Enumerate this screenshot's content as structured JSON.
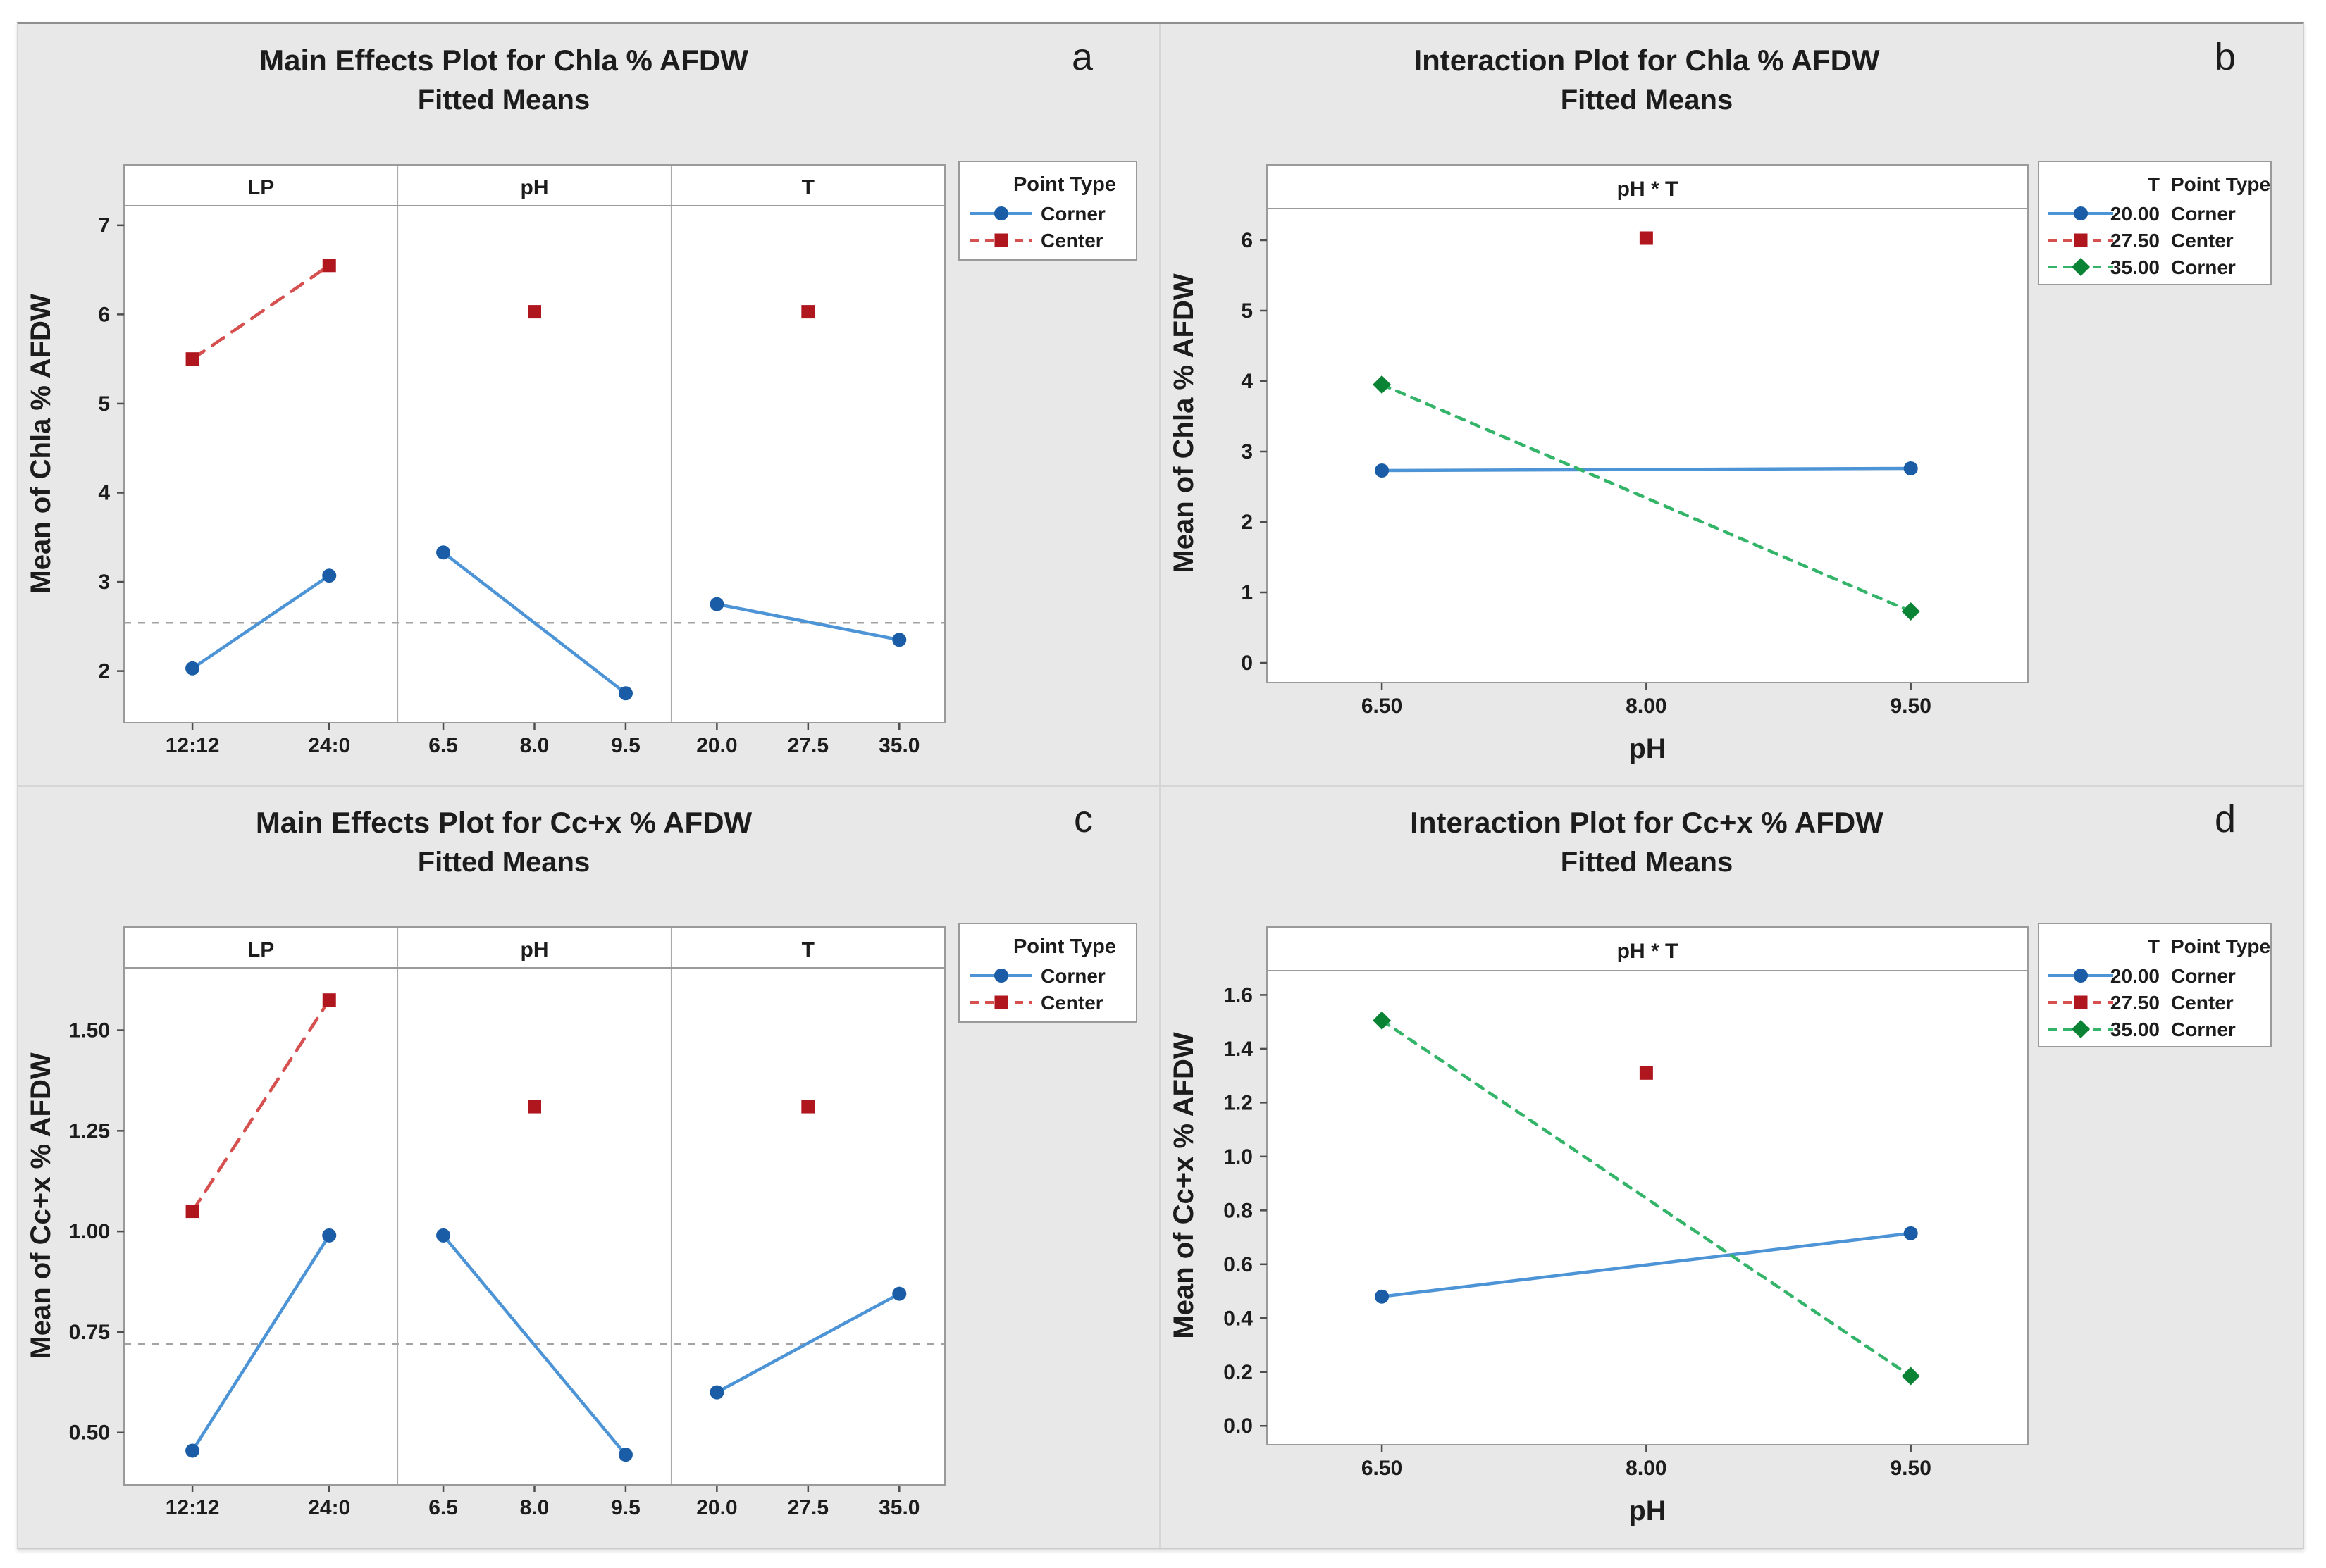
{
  "colors": {
    "background": "#E8E8E8",
    "panel_fill": "#FFFFFF",
    "frame_stroke": "#9A9A9A",
    "divider": "#ABABAB",
    "quad_divider": "#D6D6D6",
    "text": "#1C1C1C",
    "tick": "#4D4D4D",
    "ref_line": "#A3A3A3",
    "series_styles": {
      "corner_blue": {
        "line": "#4D94D6",
        "marker": "#1A5DA6",
        "dash": "",
        "shape": "circle"
      },
      "center_red": {
        "line": "#D5504E",
        "marker": "#AF161E",
        "dash": "20 14",
        "shape": "square"
      },
      "corner_green": {
        "line": "#33B469",
        "marker": "#0A8434",
        "dash": "12 11",
        "shape": "diamond"
      }
    }
  },
  "chart_data": [
    {
      "type": "line",
      "variant": "main_effects",
      "corner_label": "a",
      "title": "Main Effects Plot for Chla % AFDW",
      "subtitle": "Fitted Means",
      "ylabel": "Mean of Chla % AFDW",
      "ylim": [
        1.42,
        7.22
      ],
      "ytick_values": [
        7,
        6,
        5,
        4,
        3,
        2
      ],
      "ytick_labels": [
        "7",
        "6",
        "5",
        "4",
        "3",
        "2"
      ],
      "ref_line": 2.54,
      "groups": [
        {
          "name": "LP",
          "categories": [
            "12:12",
            "24:0"
          ],
          "series": [
            {
              "style": "center_red",
              "point_type": "Center",
              "idx": [
                0,
                1
              ],
              "values": [
                5.5,
                6.55
              ]
            },
            {
              "style": "corner_blue",
              "point_type": "Corner",
              "idx": [
                0,
                1
              ],
              "values": [
                2.03,
                3.07
              ]
            }
          ]
        },
        {
          "name": "pH",
          "categories": [
            "6.5",
            "8.0",
            "9.5"
          ],
          "series": [
            {
              "style": "center_red",
              "point_type": "Center",
              "idx": [
                1
              ],
              "values": [
                6.03
              ]
            },
            {
              "style": "corner_blue",
              "point_type": "Corner",
              "idx": [
                0,
                2
              ],
              "values": [
                3.33,
                1.75
              ]
            }
          ]
        },
        {
          "name": "T",
          "categories": [
            "20.0",
            "27.5",
            "35.0"
          ],
          "series": [
            {
              "style": "center_red",
              "point_type": "Center",
              "idx": [
                1
              ],
              "values": [
                6.03
              ]
            },
            {
              "style": "corner_blue",
              "point_type": "Corner",
              "idx": [
                0,
                2
              ],
              "values": [
                2.75,
                2.35
              ]
            }
          ]
        }
      ],
      "legend": {
        "title": "Point Type",
        "entries": [
          {
            "label": "Corner",
            "style": "corner_blue"
          },
          {
            "label": "Center",
            "style": "center_red"
          }
        ]
      }
    },
    {
      "type": "line",
      "variant": "interaction",
      "corner_label": "b",
      "title": "Interaction Plot for Chla % AFDW",
      "subtitle": "Fitted Means",
      "panel_header": "pH * T",
      "ylabel": "Mean of Chla % AFDW",
      "xlabel": "pH",
      "ylim": [
        -0.28,
        6.45
      ],
      "ytick_values": [
        6,
        5,
        4,
        3,
        2,
        1,
        0
      ],
      "ytick_labels": [
        "6",
        "5",
        "4",
        "3",
        "2",
        "1",
        "0"
      ],
      "xtick_values": [
        6.5,
        8.0,
        9.5
      ],
      "xtick_labels": [
        "6.50",
        "8.00",
        "9.50"
      ],
      "series": [
        {
          "style": "corner_blue",
          "t": "20.00",
          "point_type": "Corner",
          "x": [
            6.5,
            9.5
          ],
          "y": [
            2.73,
            2.76
          ]
        },
        {
          "style": "center_red",
          "t": "27.50",
          "point_type": "Center",
          "x": [
            8.0
          ],
          "y": [
            6.03
          ]
        },
        {
          "style": "corner_green",
          "t": "35.00",
          "point_type": "Corner",
          "x": [
            6.5,
            9.5
          ],
          "y": [
            3.95,
            0.73
          ]
        }
      ],
      "legend": {
        "title_t": "T",
        "title_pt": "Point Type"
      }
    },
    {
      "type": "line",
      "variant": "main_effects",
      "corner_label": "c",
      "title": "Main Effects Plot for Cc+x % AFDW",
      "subtitle": "Fitted Means",
      "ylabel": "Mean of Cc+x % AFDW",
      "ylim": [
        0.37,
        1.655
      ],
      "ytick_values": [
        1.5,
        1.25,
        1.0,
        0.75,
        0.5
      ],
      "ytick_labels": [
        "1.50",
        "1.25",
        "1.00",
        "0.75",
        "0.50"
      ],
      "ref_line": 0.72,
      "groups": [
        {
          "name": "LP",
          "categories": [
            "12:12",
            "24:0"
          ],
          "series": [
            {
              "style": "center_red",
              "point_type": "Center",
              "idx": [
                0,
                1
              ],
              "values": [
                1.05,
                1.575
              ]
            },
            {
              "style": "corner_blue",
              "point_type": "Corner",
              "idx": [
                0,
                1
              ],
              "values": [
                0.455,
                0.99
              ]
            }
          ]
        },
        {
          "name": "pH",
          "categories": [
            "6.5",
            "8.0",
            "9.5"
          ],
          "series": [
            {
              "style": "center_red",
              "point_type": "Center",
              "idx": [
                1
              ],
              "values": [
                1.31
              ]
            },
            {
              "style": "corner_blue",
              "point_type": "Corner",
              "idx": [
                0,
                2
              ],
              "values": [
                0.99,
                0.445
              ]
            }
          ]
        },
        {
          "name": "T",
          "categories": [
            "20.0",
            "27.5",
            "35.0"
          ],
          "series": [
            {
              "style": "center_red",
              "point_type": "Center",
              "idx": [
                1
              ],
              "values": [
                1.31
              ]
            },
            {
              "style": "corner_blue",
              "point_type": "Corner",
              "idx": [
                0,
                2
              ],
              "values": [
                0.6,
                0.845
              ]
            }
          ]
        }
      ],
      "legend": {
        "title": "Point Type",
        "entries": [
          {
            "label": "Corner",
            "style": "corner_blue"
          },
          {
            "label": "Center",
            "style": "center_red"
          }
        ]
      }
    },
    {
      "type": "line",
      "variant": "interaction",
      "corner_label": "d",
      "title": "Interaction Plot for Cc+x % AFDW",
      "subtitle": "Fitted Means",
      "panel_header": "pH * T",
      "ylabel": "Mean of Cc+x % AFDW",
      "xlabel": "pH",
      "ylim": [
        -0.07,
        1.69
      ],
      "ytick_values": [
        1.6,
        1.4,
        1.2,
        1.0,
        0.8,
        0.6,
        0.4,
        0.2,
        0.0
      ],
      "ytick_labels": [
        "1.6",
        "1.4",
        "1.2",
        "1.0",
        "0.8",
        "0.6",
        "0.4",
        "0.2",
        "0.0"
      ],
      "xtick_values": [
        6.5,
        8.0,
        9.5
      ],
      "xtick_labels": [
        "6.50",
        "8.00",
        "9.50"
      ],
      "series": [
        {
          "style": "corner_blue",
          "t": "20.00",
          "point_type": "Corner",
          "x": [
            6.5,
            9.5
          ],
          "y": [
            0.48,
            0.715
          ]
        },
        {
          "style": "center_red",
          "t": "27.50",
          "point_type": "Center",
          "x": [
            8.0
          ],
          "y": [
            1.31
          ]
        },
        {
          "style": "corner_green",
          "t": "35.00",
          "point_type": "Corner",
          "x": [
            6.5,
            9.5
          ],
          "y": [
            1.505,
            0.185
          ]
        }
      ],
      "legend": {
        "title_t": "T",
        "title_pt": "Point Type"
      }
    }
  ]
}
